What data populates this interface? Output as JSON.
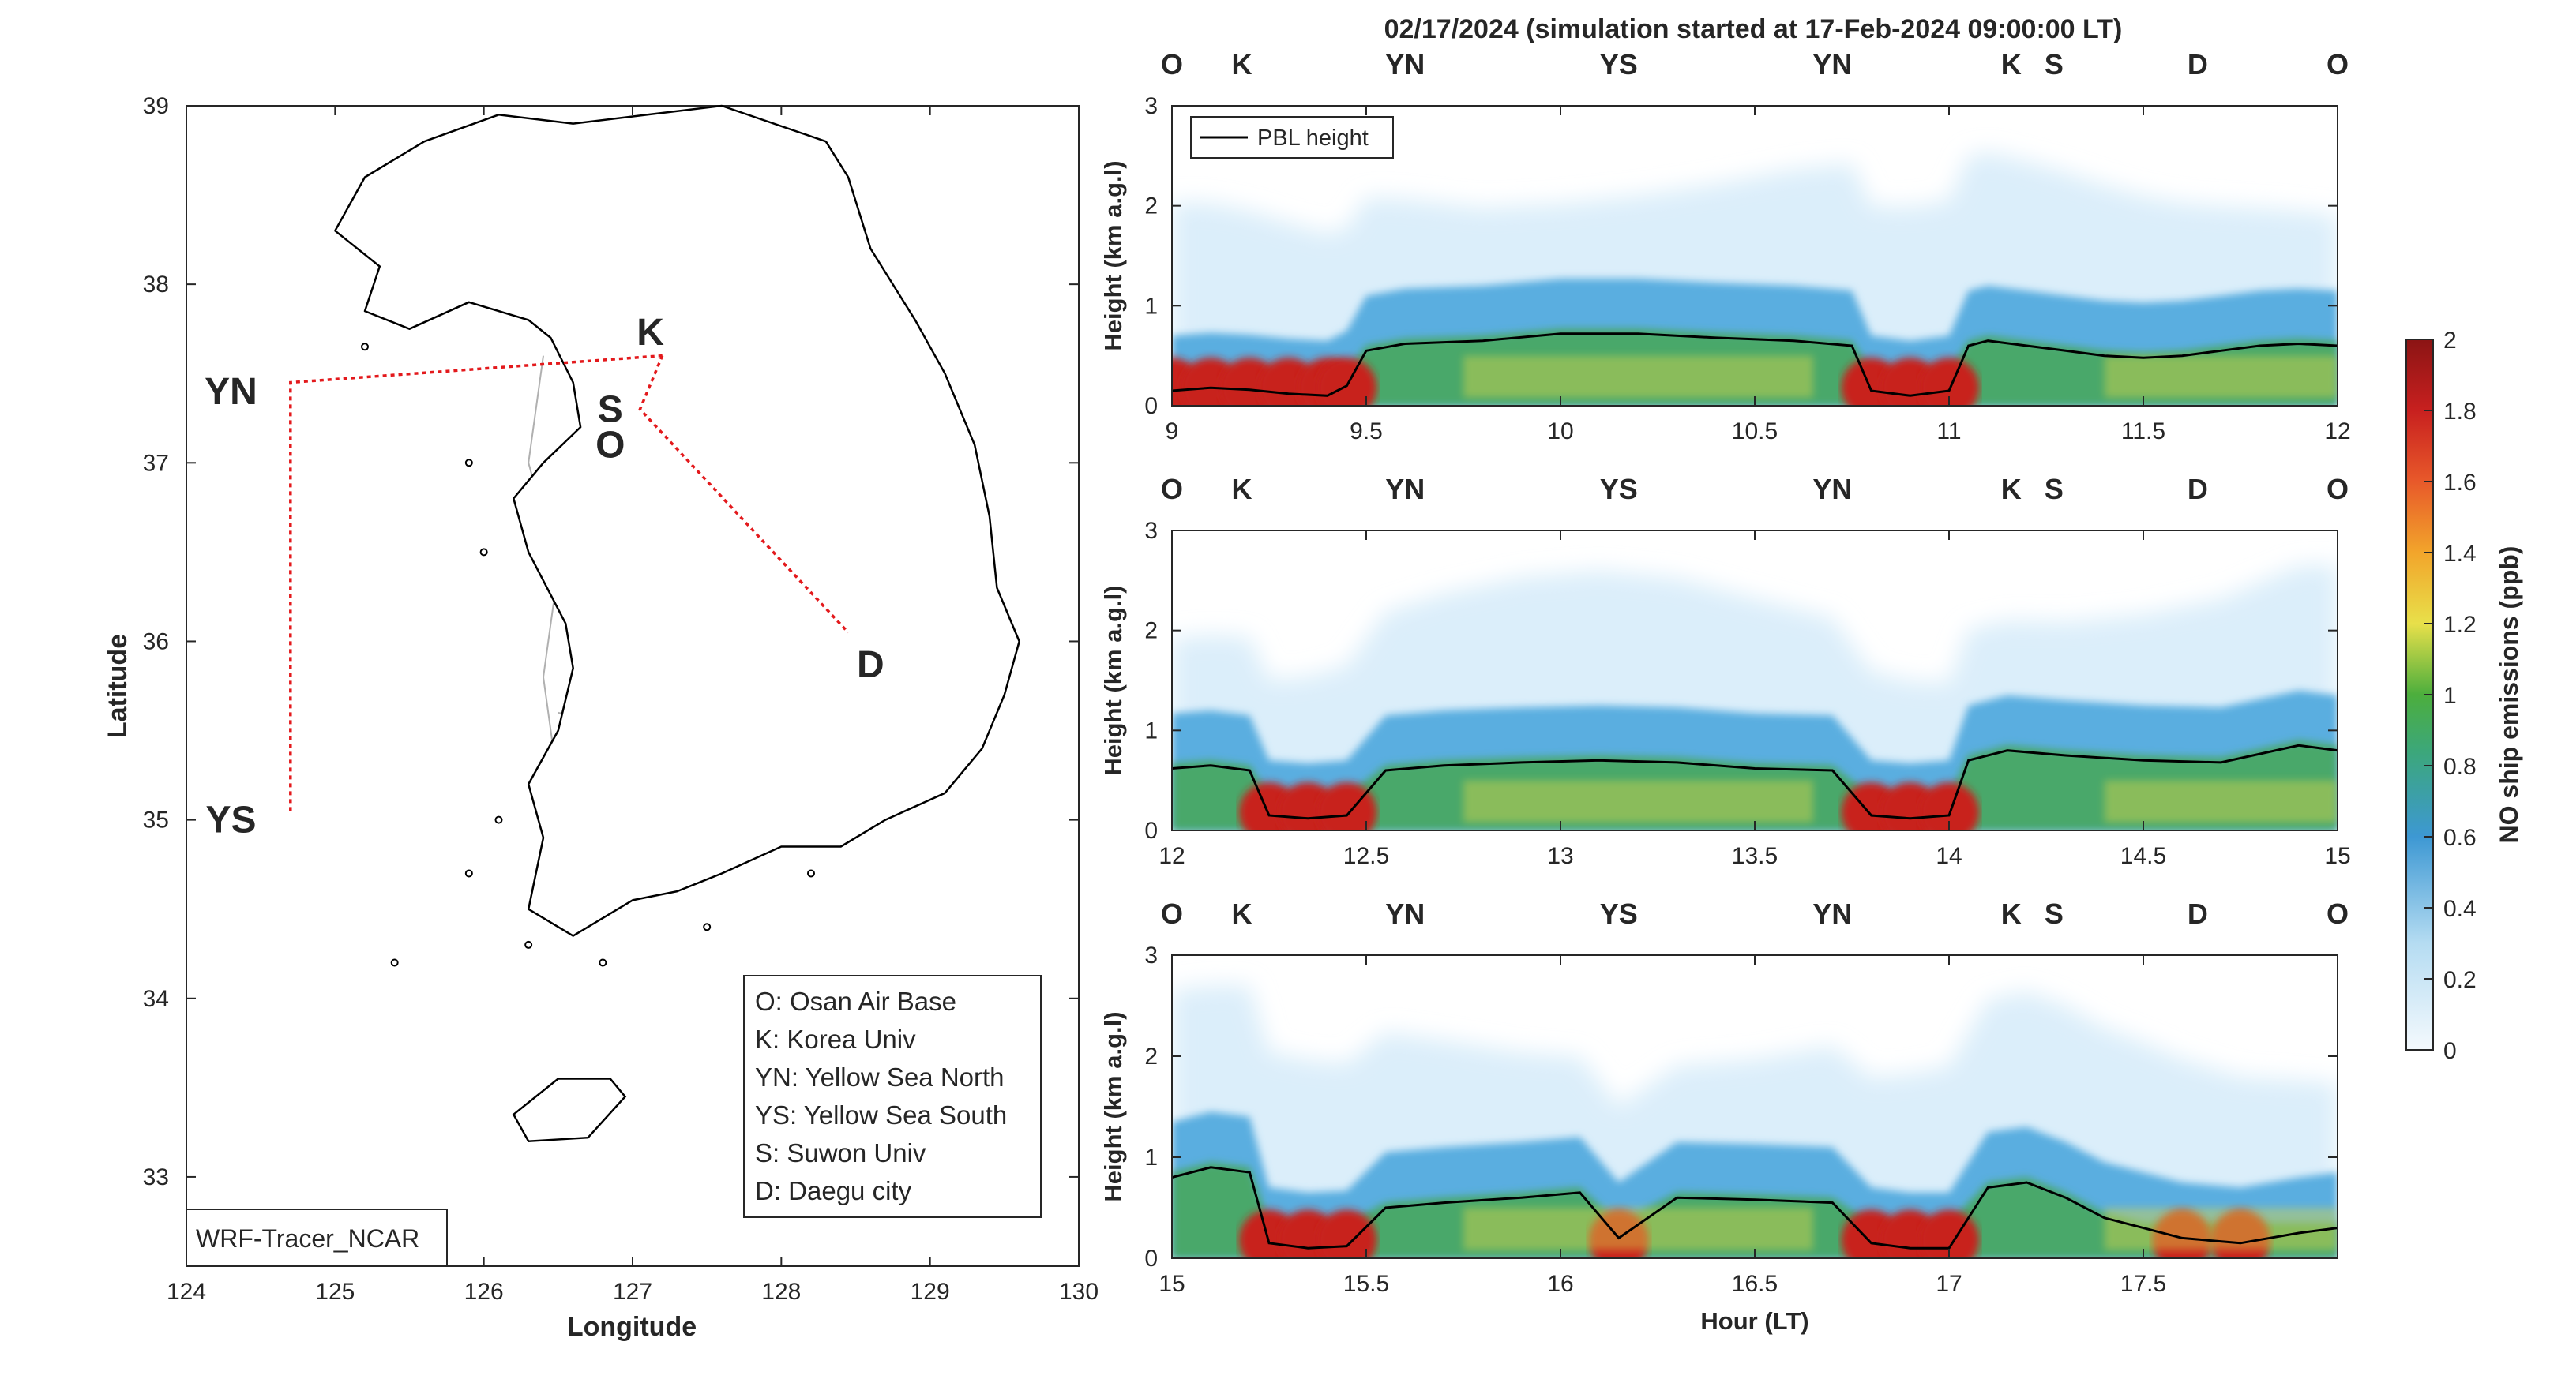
{
  "title": "02/17/2024 (simulation started at 17-Feb-2024 09:00:00 LT)",
  "colors": {
    "O": "#000000",
    "K": "#4db8e8",
    "YN": "#6aa821",
    "YS": "#f0b416",
    "S": "#7b2d8e",
    "D": "#e05a1a",
    "route": "#e3191c"
  },
  "map": {
    "xlabel": "Longitude",
    "ylabel": "Latitude",
    "xlim": [
      124,
      130
    ],
    "ylim": [
      32.5,
      39
    ],
    "xticks": [
      "124",
      "125",
      "126",
      "127",
      "128",
      "129",
      "130"
    ],
    "yticks": [
      "33",
      "34",
      "35",
      "36",
      "37",
      "38",
      "39"
    ],
    "watermark": "WRF-Tracer_NCAR",
    "legend": [
      "O: Osan Air Base",
      "K: Korea Univ",
      "YN: Yellow Sea North",
      "YS: Yellow Sea South",
      "S: Suwon Univ",
      "D: Daegu city"
    ],
    "sites": [
      {
        "label": "O",
        "lon": 126.85,
        "lat": 37.1
      },
      {
        "label": "K",
        "lon": 127.12,
        "lat": 37.73
      },
      {
        "label": "S",
        "lon": 126.85,
        "lat": 37.3
      },
      {
        "label": "YN",
        "lon": 124.3,
        "lat": 37.4
      },
      {
        "label": "YS",
        "lon": 124.3,
        "lat": 35.0
      },
      {
        "label": "D",
        "lon": 128.6,
        "lat": 35.87
      }
    ],
    "route": [
      [
        127.2,
        37.6
      ],
      [
        126.7,
        37.57
      ],
      [
        124.7,
        37.45
      ],
      [
        124.7,
        35.05
      ]
    ],
    "route2": [
      [
        127.2,
        37.6
      ],
      [
        127.05,
        37.3
      ],
      [
        128.45,
        36.05
      ]
    ]
  },
  "top_labels": [
    "O",
    "K",
    "YN",
    "YS",
    "YN",
    "K",
    "S",
    "D",
    "O"
  ],
  "chart_data": [
    {
      "type": "heatmap",
      "xlim": [
        9,
        12
      ],
      "ylim": [
        0,
        3
      ],
      "xlabel": "",
      "ylabel": "Height (km a.g.l)",
      "xticks": [
        "9",
        "9.5",
        "10",
        "10.5",
        "11",
        "11.5",
        "12"
      ],
      "yticks": [
        "0",
        "1",
        "2",
        "3"
      ],
      "legend": [
        "PBL height"
      ],
      "label_positions": [
        9.0,
        9.18,
        9.6,
        10.15,
        10.7,
        11.16,
        11.27,
        11.64,
        12.0
      ],
      "pbl_height": [
        [
          9.0,
          0.15
        ],
        [
          9.1,
          0.18
        ],
        [
          9.2,
          0.16
        ],
        [
          9.3,
          0.12
        ],
        [
          9.4,
          0.1
        ],
        [
          9.45,
          0.2
        ],
        [
          9.5,
          0.55
        ],
        [
          9.6,
          0.62
        ],
        [
          9.8,
          0.65
        ],
        [
          10.0,
          0.72
        ],
        [
          10.2,
          0.72
        ],
        [
          10.4,
          0.68
        ],
        [
          10.6,
          0.65
        ],
        [
          10.75,
          0.6
        ],
        [
          10.8,
          0.15
        ],
        [
          10.9,
          0.1
        ],
        [
          11.0,
          0.15
        ],
        [
          11.05,
          0.6
        ],
        [
          11.1,
          0.65
        ],
        [
          11.2,
          0.6
        ],
        [
          11.3,
          0.55
        ],
        [
          11.4,
          0.5
        ],
        [
          11.5,
          0.48
        ],
        [
          11.6,
          0.5
        ],
        [
          11.7,
          0.55
        ],
        [
          11.8,
          0.6
        ],
        [
          11.9,
          0.62
        ],
        [
          12.0,
          0.6
        ]
      ]
    },
    {
      "type": "heatmap",
      "xlim": [
        12,
        15
      ],
      "ylim": [
        0,
        3
      ],
      "xlabel": "",
      "ylabel": "Height (km a.g.l)",
      "xticks": [
        "12",
        "12.5",
        "13",
        "13.5",
        "14",
        "14.5",
        "15"
      ],
      "yticks": [
        "0",
        "1",
        "2",
        "3"
      ],
      "label_positions": [
        12.0,
        12.18,
        12.6,
        13.15,
        13.7,
        14.16,
        14.27,
        14.64,
        15.0
      ],
      "pbl_height": [
        [
          12.0,
          0.62
        ],
        [
          12.1,
          0.65
        ],
        [
          12.2,
          0.6
        ],
        [
          12.25,
          0.15
        ],
        [
          12.35,
          0.12
        ],
        [
          12.45,
          0.15
        ],
        [
          12.55,
          0.6
        ],
        [
          12.7,
          0.65
        ],
        [
          12.9,
          0.68
        ],
        [
          13.1,
          0.7
        ],
        [
          13.3,
          0.68
        ],
        [
          13.5,
          0.62
        ],
        [
          13.7,
          0.6
        ],
        [
          13.8,
          0.15
        ],
        [
          13.9,
          0.12
        ],
        [
          14.0,
          0.15
        ],
        [
          14.05,
          0.7
        ],
        [
          14.15,
          0.8
        ],
        [
          14.3,
          0.75
        ],
        [
          14.5,
          0.7
        ],
        [
          14.7,
          0.68
        ],
        [
          14.9,
          0.85
        ],
        [
          15.0,
          0.8
        ]
      ]
    },
    {
      "type": "heatmap",
      "xlim": [
        15,
        18
      ],
      "ylim": [
        0,
        3
      ],
      "xlabel": "Hour (LT)",
      "ylabel": "Height (km a.g.l)",
      "xticks": [
        "15",
        "15.5",
        "16",
        "16.5",
        "17",
        "17.5",
        ""
      ],
      "yticks": [
        "0",
        "1",
        "2",
        "3"
      ],
      "label_positions": [
        15.0,
        15.18,
        15.6,
        16.15,
        16.7,
        17.16,
        17.27,
        17.64,
        18.0
      ],
      "pbl_height": [
        [
          15.0,
          0.8
        ],
        [
          15.1,
          0.9
        ],
        [
          15.2,
          0.85
        ],
        [
          15.25,
          0.15
        ],
        [
          15.35,
          0.1
        ],
        [
          15.45,
          0.12
        ],
        [
          15.55,
          0.5
        ],
        [
          15.7,
          0.55
        ],
        [
          15.9,
          0.6
        ],
        [
          16.05,
          0.65
        ],
        [
          16.15,
          0.2
        ],
        [
          16.3,
          0.6
        ],
        [
          16.5,
          0.58
        ],
        [
          16.7,
          0.55
        ],
        [
          16.8,
          0.15
        ],
        [
          16.9,
          0.1
        ],
        [
          17.0,
          0.1
        ],
        [
          17.1,
          0.7
        ],
        [
          17.2,
          0.75
        ],
        [
          17.3,
          0.6
        ],
        [
          17.4,
          0.4
        ],
        [
          17.5,
          0.3
        ],
        [
          17.6,
          0.2
        ],
        [
          17.75,
          0.15
        ],
        [
          17.9,
          0.25
        ],
        [
          18.0,
          0.3
        ]
      ]
    }
  ],
  "colorbar": {
    "label": "NO ship emissions (ppb)",
    "ticks": [
      "0",
      "0.2",
      "0.4",
      "0.6",
      "0.8",
      "1",
      "1.2",
      "1.4",
      "1.6",
      "1.8",
      "2"
    ],
    "range": [
      0,
      2
    ]
  }
}
